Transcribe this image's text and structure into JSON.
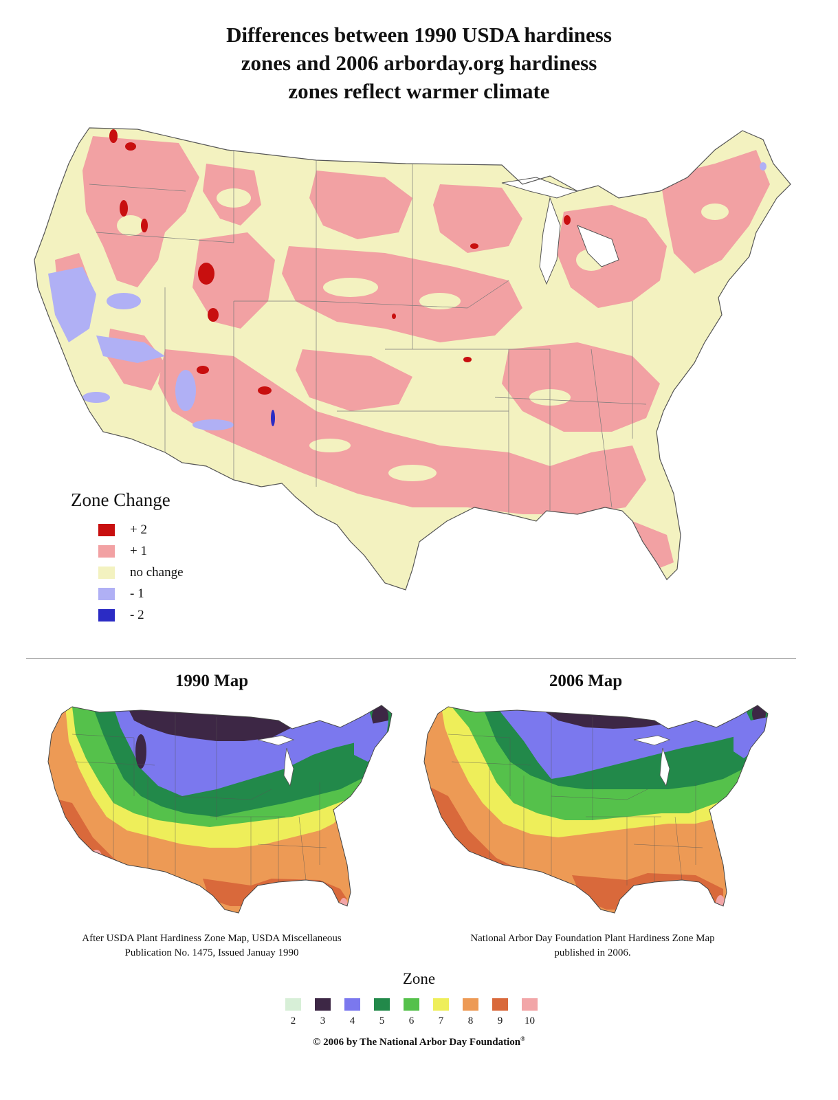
{
  "title_lines": [
    "Differences between 1990 USDA hardiness",
    "zones and 2006 arborday.org hardiness",
    "zones reflect warmer climate"
  ],
  "zone_change_legend": {
    "title": "Zone Change",
    "items": [
      {
        "label": "+ 2",
        "color": "#c80f0f"
      },
      {
        "label": "+ 1",
        "color": "#f2a1a3"
      },
      {
        "label": "no change",
        "color": "#f3f2c0"
      },
      {
        "label": "- 1",
        "color": "#b0b0f5"
      },
      {
        "label": "- 2",
        "color": "#2b2bc4"
      }
    ]
  },
  "map_1990": {
    "title": "1990 Map",
    "caption_lines": [
      "After USDA Plant Hardiness Zone Map, USDA Miscellaneous",
      "Publication No. 1475, Issued Januay 1990"
    ]
  },
  "map_2006": {
    "title": "2006 Map",
    "caption_lines": [
      "National Arbor Day Foundation Plant Hardiness Zone Map",
      "published in 2006."
    ]
  },
  "zone_legend": {
    "title": "Zone",
    "items": [
      {
        "label": "2",
        "color": "#d7efd7"
      },
      {
        "label": "3",
        "color": "#3d2745"
      },
      {
        "label": "4",
        "color": "#7b78ee"
      },
      {
        "label": "5",
        "color": "#22894a"
      },
      {
        "label": "6",
        "color": "#55c14b"
      },
      {
        "label": "7",
        "color": "#eeee5a"
      },
      {
        "label": "8",
        "color": "#ed9a55"
      },
      {
        "label": "9",
        "color": "#d9693b"
      },
      {
        "label": "10",
        "color": "#f2a6a8"
      }
    ]
  },
  "copyright": {
    "text": "© 2006 by The National Arbor Day Foundation",
    "mark": "®"
  },
  "colors": {
    "ocean": "#ffffff",
    "border": "#555555"
  }
}
